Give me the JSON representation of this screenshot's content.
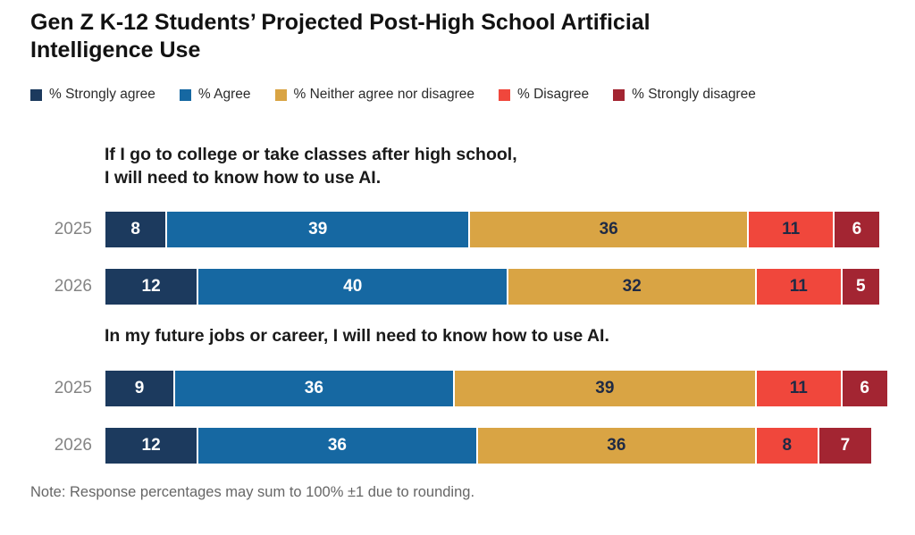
{
  "title": "Gen Z K-12 Students’ Projected Post-High School Artificial\nIntelligence Use",
  "note": "Note: Response percentages may sum to 100% ±1 due to rounding.",
  "legend": {
    "items": [
      {
        "key": "strongly-agree",
        "label": "% Strongly agree",
        "color": "#1c3a5e",
        "value_text_color": "#ffffff"
      },
      {
        "key": "agree",
        "label": "% Agree",
        "color": "#1668a2",
        "value_text_color": "#ffffff"
      },
      {
        "key": "neither",
        "label": "% Neither agree nor disagree",
        "color": "#d9a444",
        "value_text_color": "#1f2a44"
      },
      {
        "key": "disagree",
        "label": "% Disagree",
        "color": "#f0473c",
        "value_text_color": "#1f2a44"
      },
      {
        "key": "strongly-disagree",
        "label": "% Strongly disagree",
        "color": "#a32532",
        "value_text_color": "#ffffff"
      }
    ]
  },
  "chart_data": {
    "type": "bar",
    "variant": "horizontal-stacked",
    "unit": "percent",
    "xlim": [
      0,
      100
    ],
    "grid": false,
    "legend_position": "top",
    "title": "Gen Z K-12 Students’ Projected Post-High School Artificial Intelligence Use",
    "series_names": [
      "% Strongly agree",
      "% Agree",
      "% Neither agree nor disagree",
      "% Disagree",
      "% Strongly disagree"
    ],
    "series_colors": [
      "#1c3a5e",
      "#1668a2",
      "#d9a444",
      "#f0473c",
      "#a32532"
    ],
    "groups": [
      {
        "question": "If I go to college or take classes after high school,\nI will need to know how to use AI.",
        "rows": [
          {
            "year": "2025",
            "values": [
              8,
              39,
              36,
              11,
              6
            ]
          },
          {
            "year": "2026",
            "values": [
              12,
              40,
              32,
              11,
              5
            ]
          }
        ]
      },
      {
        "question": "In my future jobs or career, I will need to know how to use AI.",
        "rows": [
          {
            "year": "2025",
            "values": [
              9,
              36,
              39,
              11,
              6
            ]
          },
          {
            "year": "2026",
            "values": [
              12,
              36,
              36,
              8,
              7
            ]
          }
        ]
      }
    ]
  }
}
